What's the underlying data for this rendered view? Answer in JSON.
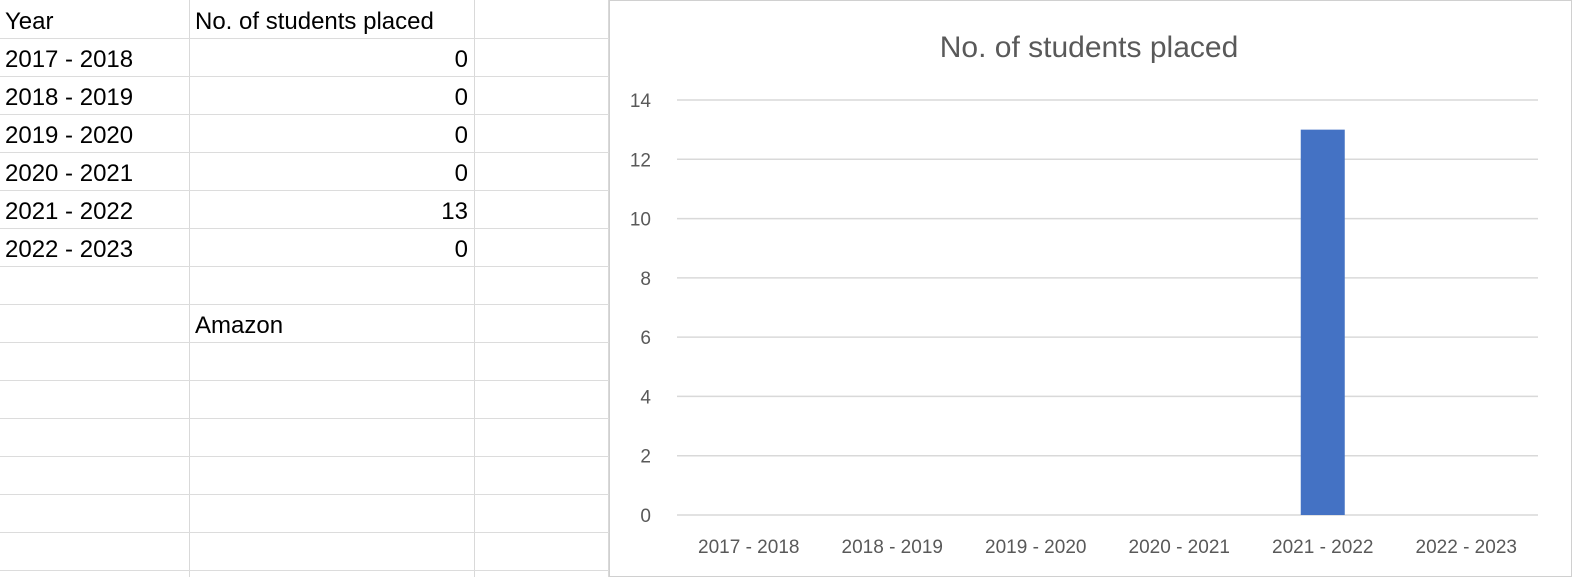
{
  "sheet": {
    "headers": [
      "Year",
      "No. of students placed"
    ],
    "rows": [
      {
        "year": "2017 - 2018",
        "placed": "0"
      },
      {
        "year": "2018 - 2019",
        "placed": "0"
      },
      {
        "year": "2019 - 2020",
        "placed": "0"
      },
      {
        "year": "2020 - 2021",
        "placed": "0"
      },
      {
        "year": "2021 - 2022",
        "placed": "13"
      },
      {
        "year": "2022 - 2023",
        "placed": "0"
      }
    ],
    "note": "Amazon"
  },
  "chart_data": {
    "type": "bar",
    "title": "No. of students placed",
    "categories": [
      "2017 - 2018",
      "2018 - 2019",
      "2019 - 2020",
      "2020 - 2021",
      "2021 - 2022",
      "2022 - 2023"
    ],
    "values": [
      0,
      0,
      0,
      0,
      13,
      0
    ],
    "ylim": [
      0,
      14
    ],
    "yticks": [
      0,
      2,
      4,
      6,
      8,
      10,
      12,
      14
    ],
    "grid": true,
    "bar_color": "#4472c4",
    "xlabel": "",
    "ylabel": ""
  }
}
